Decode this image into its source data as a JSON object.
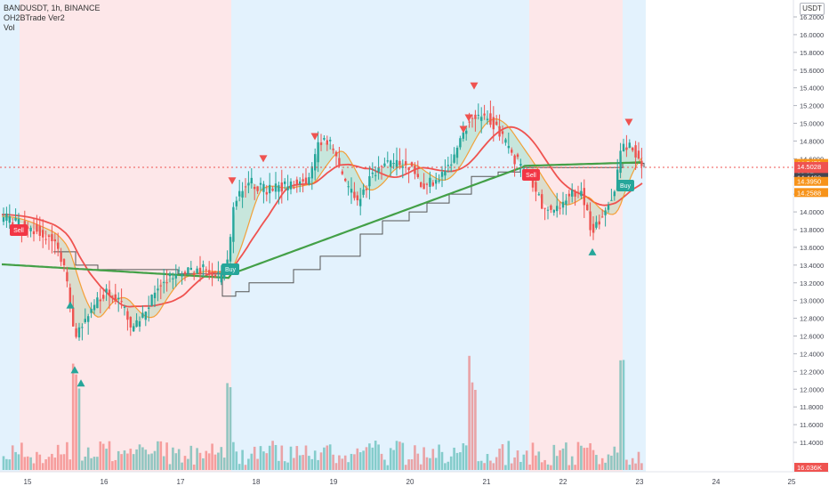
{
  "chart_data": {
    "type": "candlestick",
    "title": "BANDUSDT, 1h, BINANCE",
    "indicators": [
      "OH2BTrade Ver2",
      "Vol"
    ],
    "currency": "USDT",
    "price_range": [
      12.75,
      16.25
    ],
    "y_ticks": [
      "16.2000",
      "16.0000",
      "15.8000",
      "15.6000",
      "15.4000",
      "15.2000",
      "15.0000",
      "14.8000",
      "14.6000",
      "14.4000",
      "14.2000",
      "14.0000",
      "13.8000",
      "13.6000",
      "13.4000",
      "13.2000",
      "13.0000",
      "12.8000",
      "12.6000",
      "12.4000",
      "12.2000",
      "12.0000",
      "11.8000",
      "11.6000",
      "11.4000"
    ],
    "x_ticks": [
      "15",
      "16",
      "17",
      "18",
      "19",
      "20",
      "21",
      "22",
      "23",
      "24",
      "25"
    ],
    "price_labels": [
      {
        "text": "14.5470",
        "color": "#f7931a"
      },
      {
        "text": "14.5028",
        "color": "#ef5350"
      },
      {
        "text": "36:07",
        "color": "#ef5350"
      },
      {
        "text": "14.4490",
        "color": "#434651"
      },
      {
        "text": "14.3950",
        "color": "#f7931a"
      },
      {
        "text": "14.2588",
        "color": "#f7931a"
      }
    ],
    "volume_label": {
      "text": "16.036K",
      "color": "#ef5350"
    },
    "signals": [
      {
        "label": "Sell",
        "type": "sell"
      },
      {
        "label": "Buy",
        "type": "buy"
      },
      {
        "label": "Sell",
        "type": "sell"
      },
      {
        "label": "Buy",
        "type": "buy"
      }
    ],
    "colors": {
      "up": "#26a69a",
      "down": "#ef5350",
      "bg_bull": "#e3f2fd",
      "bg_bear": "#fde7e9",
      "ma_fast": "#f7931a",
      "ma_slow": "#ef5350",
      "ma_long": "#43a047",
      "step_line": "#555555"
    }
  }
}
